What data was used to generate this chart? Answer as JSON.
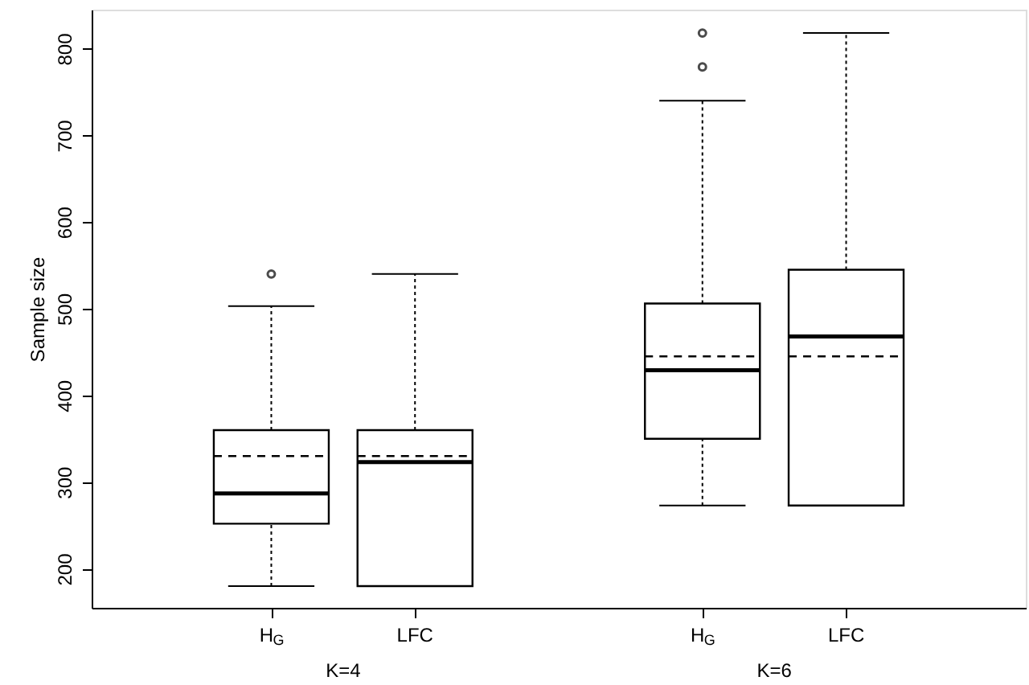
{
  "chart_data": {
    "type": "box",
    "ylabel": "Sample size",
    "categories": [
      "H$_{G}$",
      "LFC",
      "H$_{G}$",
      "LFC"
    ],
    "boxes": [
      {
        "low": 180,
        "q1": 252,
        "median": 287,
        "q3": 360,
        "high": 503,
        "mean": 330,
        "outliers": [
          540
        ]
      },
      {
        "low": 180,
        "q1": 180,
        "median": 323,
        "q3": 360,
        "high": 540,
        "mean": 330
      },
      {
        "low": 273,
        "q1": 350,
        "median": 429,
        "q3": 506,
        "high": 740,
        "mean": 445,
        "outliers": [
          779,
          818
        ]
      },
      {
        "low": 273,
        "q1": 273,
        "median": 468,
        "q3": 545,
        "high": 818,
        "mean": 445
      }
    ],
    "annotations": [
      "K=4",
      "K=6"
    ],
    "ylim": [
      155,
      845
    ],
    "yticks": [
      200,
      300,
      400,
      500,
      600,
      700,
      800
    ],
    "grid": false
  }
}
